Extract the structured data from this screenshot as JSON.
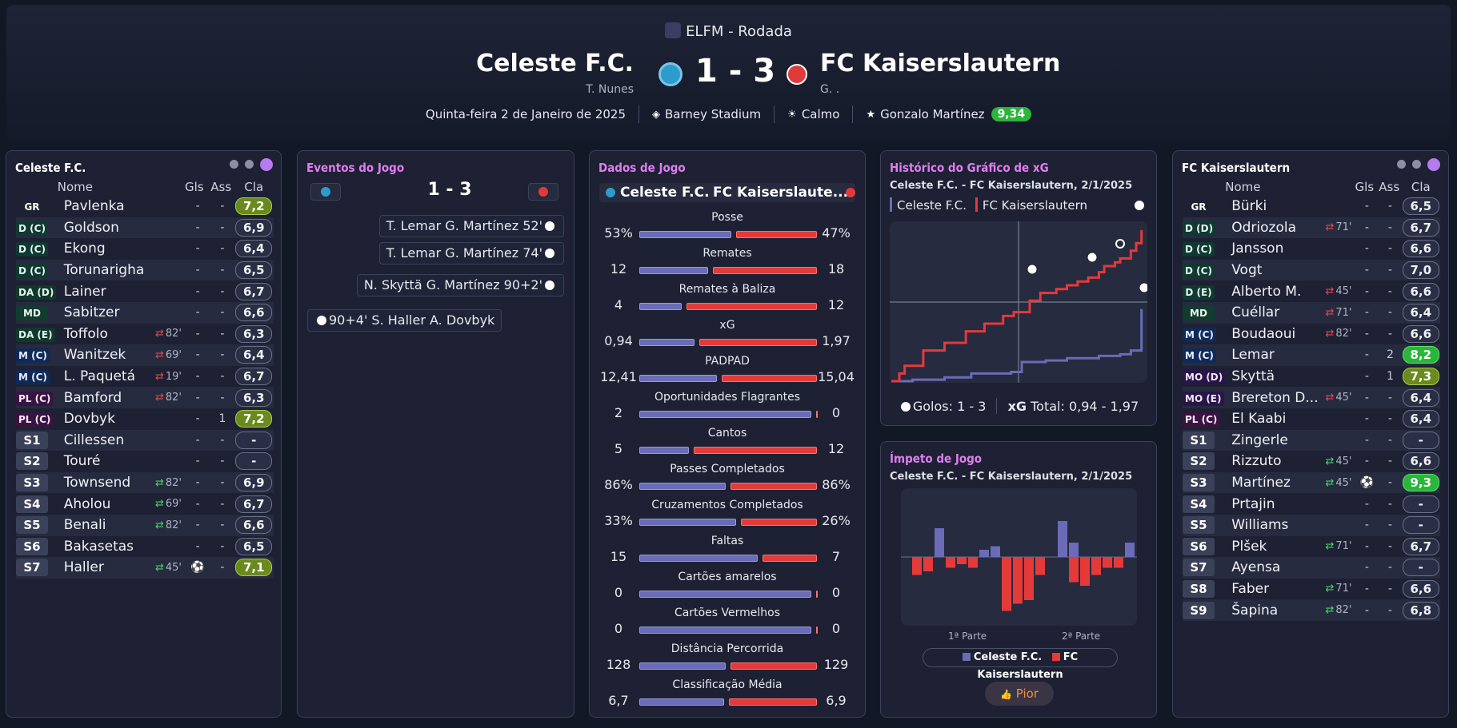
{
  "header": {
    "competition": "ELFM - Rodada",
    "home_team": "Celeste F.C.",
    "home_coach": "T. Nunes",
    "score": "1 - 3",
    "away_team": "FC Kaiserslautern",
    "away_coach": "G. .",
    "date": "Quinta-feira 2 de Janeiro de 2025",
    "stadium": "Barney Stadium",
    "weather": "Calmo",
    "motm": "Gonzalo Martínez",
    "motm_rating": "9,34"
  },
  "columns": {
    "name": "Nome",
    "goals": "Gls",
    "assists": "Ass",
    "rating": "Cla"
  },
  "home_panel_title": "Celeste F.C.",
  "away_panel_title": "FC Kaiserslautern",
  "home_players": [
    {
      "pos": "GR",
      "cls": "gr",
      "name": "Pavlenka",
      "sub": "",
      "goals": "-",
      "assists": "-",
      "rating": "7,2",
      "rc": "good"
    },
    {
      "pos": "D (C)",
      "cls": "d",
      "name": "Goldson",
      "sub": "",
      "goals": "-",
      "assists": "-",
      "rating": "6,9",
      "rc": ""
    },
    {
      "pos": "D (C)",
      "cls": "d",
      "name": "Ekong",
      "sub": "",
      "goals": "-",
      "assists": "-",
      "rating": "6,4",
      "rc": ""
    },
    {
      "pos": "D (C)",
      "cls": "d",
      "name": "Torunarigha",
      "sub": "",
      "goals": "-",
      "assists": "-",
      "rating": "6,5",
      "rc": ""
    },
    {
      "pos": "DA (D)",
      "cls": "da",
      "name": "Lainer",
      "sub": "",
      "goals": "-",
      "assists": "-",
      "rating": "6,7",
      "rc": ""
    },
    {
      "pos": "MD",
      "cls": "md",
      "name": "Sabitzer",
      "sub": "",
      "goals": "-",
      "assists": "-",
      "rating": "6,6",
      "rc": ""
    },
    {
      "pos": "DA (E)",
      "cls": "da",
      "name": "Toffolo",
      "sub": "82'",
      "arr": "r",
      "goals": "-",
      "assists": "-",
      "rating": "6,3",
      "rc": ""
    },
    {
      "pos": "M (C)",
      "cls": "m",
      "name": "Wanitzek",
      "sub": "69'",
      "arr": "r",
      "goals": "-",
      "assists": "-",
      "rating": "6,4",
      "rc": ""
    },
    {
      "pos": "M (C)",
      "cls": "m",
      "name": "L. Paquetá",
      "sub": "19'",
      "arr": "r",
      "goals": "-",
      "assists": "-",
      "rating": "6,7",
      "rc": ""
    },
    {
      "pos": "PL (C)",
      "cls": "pl",
      "name": "Bamford",
      "sub": "82'",
      "arr": "r",
      "goals": "-",
      "assists": "-",
      "rating": "6,3",
      "rc": ""
    },
    {
      "pos": "PL (C)",
      "cls": "pl",
      "name": "Dovbyk",
      "sub": "",
      "goals": "-",
      "assists": "1",
      "rating": "7,2",
      "rc": "good"
    },
    {
      "pos": "S1",
      "cls": "sub",
      "name": "Cillessen",
      "sub": "",
      "goals": "-",
      "assists": "-",
      "rating": "-",
      "rc": ""
    },
    {
      "pos": "S2",
      "cls": "sub",
      "name": "Touré",
      "sub": "",
      "goals": "-",
      "assists": "-",
      "rating": "-",
      "rc": ""
    },
    {
      "pos": "S3",
      "cls": "sub",
      "name": "Townsend",
      "sub": "82'",
      "arr": "g",
      "goals": "-",
      "assists": "-",
      "rating": "6,9",
      "rc": ""
    },
    {
      "pos": "S4",
      "cls": "sub",
      "name": "Aholou",
      "sub": "69'",
      "arr": "g",
      "goals": "-",
      "assists": "-",
      "rating": "6,7",
      "rc": ""
    },
    {
      "pos": "S5",
      "cls": "sub",
      "name": "Benali",
      "sub": "82'",
      "arr": "g",
      "goals": "-",
      "assists": "-",
      "rating": "6,6",
      "rc": ""
    },
    {
      "pos": "S6",
      "cls": "sub",
      "name": "Bakasetas",
      "sub": "",
      "goals": "-",
      "assists": "-",
      "rating": "6,5",
      "rc": ""
    },
    {
      "pos": "S7",
      "cls": "sub",
      "name": "Haller",
      "sub": "45'",
      "arr": "g",
      "goals": "⚽",
      "assists": "-",
      "rating": "7,1",
      "rc": "good"
    }
  ],
  "away_players": [
    {
      "pos": "GR",
      "cls": "gr",
      "name": "Bürki",
      "sub": "",
      "goals": "-",
      "assists": "-",
      "rating": "6,5",
      "rc": ""
    },
    {
      "pos": "D (D)",
      "cls": "d",
      "name": "Odriozola",
      "sub": "71'",
      "arr": "r",
      "goals": "-",
      "assists": "-",
      "rating": "6,7",
      "rc": ""
    },
    {
      "pos": "D (C)",
      "cls": "d",
      "name": "Jansson",
      "sub": "",
      "goals": "-",
      "assists": "-",
      "rating": "6,6",
      "rc": ""
    },
    {
      "pos": "D (C)",
      "cls": "d",
      "name": "Vogt",
      "sub": "",
      "goals": "-",
      "assists": "-",
      "rating": "7,0",
      "rc": ""
    },
    {
      "pos": "D (E)",
      "cls": "d",
      "name": "Alberto M.",
      "sub": "45'",
      "arr": "r",
      "goals": "-",
      "assists": "-",
      "rating": "6,6",
      "rc": ""
    },
    {
      "pos": "MD",
      "cls": "md",
      "name": "Cuéllar",
      "sub": "71'",
      "arr": "r",
      "goals": "-",
      "assists": "-",
      "rating": "6,4",
      "rc": ""
    },
    {
      "pos": "M (C)",
      "cls": "m",
      "name": "Boudaoui",
      "sub": "82'",
      "arr": "r",
      "goals": "-",
      "assists": "-",
      "rating": "6,6",
      "rc": ""
    },
    {
      "pos": "M (C)",
      "cls": "m",
      "name": "Lemar",
      "sub": "",
      "goals": "-",
      "assists": "2",
      "rating": "8,2",
      "rc": "great"
    },
    {
      "pos": "MO (D)",
      "cls": "mo",
      "name": "Skyttä",
      "sub": "",
      "goals": "-",
      "assists": "1",
      "rating": "7,3",
      "rc": "good"
    },
    {
      "pos": "MO (E)",
      "cls": "mo",
      "name": "Brereton D...",
      "sub": "45'",
      "arr": "r",
      "goals": "-",
      "assists": "-",
      "rating": "6,4",
      "rc": ""
    },
    {
      "pos": "PL (C)",
      "cls": "pl",
      "name": "El Kaabi",
      "sub": "",
      "goals": "-",
      "assists": "-",
      "rating": "6,4",
      "rc": ""
    },
    {
      "pos": "S1",
      "cls": "sub",
      "name": "Zingerle",
      "sub": "",
      "goals": "-",
      "assists": "-",
      "rating": "-",
      "rc": ""
    },
    {
      "pos": "S2",
      "cls": "sub",
      "name": "Rizzuto",
      "sub": "45'",
      "arr": "g",
      "goals": "-",
      "assists": "-",
      "rating": "6,6",
      "rc": ""
    },
    {
      "pos": "S3",
      "cls": "sub",
      "name": "Martínez",
      "sub": "45'",
      "arr": "g",
      "goals": "⚽",
      "assists": "-",
      "rating": "9,3",
      "rc": "great"
    },
    {
      "pos": "S4",
      "cls": "sub",
      "name": "Prtajin",
      "sub": "",
      "goals": "-",
      "assists": "-",
      "rating": "-",
      "rc": ""
    },
    {
      "pos": "S5",
      "cls": "sub",
      "name": "Williams",
      "sub": "",
      "goals": "-",
      "assists": "-",
      "rating": "-",
      "rc": ""
    },
    {
      "pos": "S6",
      "cls": "sub",
      "name": "Plšek",
      "sub": "71'",
      "arr": "g",
      "goals": "-",
      "assists": "-",
      "rating": "6,7",
      "rc": ""
    },
    {
      "pos": "S7",
      "cls": "sub",
      "name": "Ayensa",
      "sub": "",
      "goals": "-",
      "assists": "-",
      "rating": "-",
      "rc": ""
    },
    {
      "pos": "S8",
      "cls": "sub",
      "name": "Faber",
      "sub": "71'",
      "arr": "g",
      "goals": "-",
      "assists": "-",
      "rating": "6,6",
      "rc": ""
    },
    {
      "pos": "S9",
      "cls": "sub",
      "name": "Šapina",
      "sub": "82'",
      "arr": "g",
      "goals": "-",
      "assists": "-",
      "rating": "6,8",
      "rc": ""
    }
  ],
  "events": {
    "title": "Eventos do Jogo",
    "score": "1 - 3",
    "items": [
      {
        "side": "away",
        "text": "T. Lemar  G. Martínez 52'"
      },
      {
        "side": "away",
        "text": "T. Lemar  G. Martínez 74'"
      },
      {
        "side": "away",
        "text": "N. Skyttä  G. Martínez 90+2'"
      },
      {
        "side": "home",
        "text": "90+4'  S. Haller  A. Dovbyk"
      }
    ]
  },
  "stats": {
    "title": "Dados de Jogo",
    "home": "Celeste F.C.",
    "away": "FC Kaiserslaute...",
    "rows": [
      {
        "label": "Posse",
        "h": "53%",
        "a": "47%",
        "hv": 53,
        "av": 47
      },
      {
        "label": "Remates",
        "h": "12",
        "a": "18",
        "hv": 12,
        "av": 18
      },
      {
        "label": "Remates à Baliza",
        "h": "4",
        "a": "12",
        "hv": 4,
        "av": 12
      },
      {
        "label": "xG",
        "h": "0,94",
        "a": "1,97",
        "hv": 0.94,
        "av": 1.97
      },
      {
        "label": "PADPAD",
        "h": "12,41",
        "a": "15,04",
        "hv": 12.41,
        "av": 15.04
      },
      {
        "label": "Oportunidades Flagrantes",
        "h": "2",
        "a": "0",
        "hv": 2,
        "av": 0
      },
      {
        "label": "Cantos",
        "h": "5",
        "a": "12",
        "hv": 5,
        "av": 12
      },
      {
        "label": "Passes Completados",
        "h": "86%",
        "a": "86%",
        "hv": 86,
        "av": 86
      },
      {
        "label": "Cruzamentos Completados",
        "h": "33%",
        "a": "26%",
        "hv": 33,
        "av": 26
      },
      {
        "label": "Faltas",
        "h": "15",
        "a": "7",
        "hv": 15,
        "av": 7
      },
      {
        "label": "Cartões amarelos",
        "h": "0",
        "a": "0",
        "hv": 0,
        "av": 0
      },
      {
        "label": "Cartões Vermelhos",
        "h": "0",
        "a": "0",
        "hv": 0,
        "av": 0
      },
      {
        "label": "Distância Percorrida",
        "h": "128",
        "a": "129",
        "hv": 128,
        "av": 129
      },
      {
        "label": "Classificação Média",
        "h": "6,7",
        "a": "6,9",
        "hv": 6.7,
        "av": 6.9
      }
    ]
  },
  "xg": {
    "title": "Histórico do Gráfico de xG",
    "subtitle": "Celeste F.C. - FC Kaiserslautern, 2/1/2025",
    "legend_home": "Celeste F.C.",
    "legend_away": "FC Kaiserslautern",
    "goals_label": "Golos: 1 - 3",
    "xg_label": "xG",
    "xg_total": "Total: 0,94 - 1,97"
  },
  "momentum": {
    "title": "Ímpeto de Jogo",
    "subtitle": "Celeste F.C. - FC Kaiserslautern, 2/1/2025",
    "first_half": "1ª Parte",
    "second_half": "2ª Parte",
    "legend_home": "Celeste F.C.",
    "legend_away": "FC Kaiserslautern",
    "button": "Pior"
  },
  "colors": {
    "home": "#6b6bb8",
    "away": "#e53a3a",
    "accent": "#e07ef0"
  },
  "chart_data": [
    {
      "type": "line",
      "title": "Histórico do Gráfico de xG",
      "x_label": "minute",
      "ylim": [
        0,
        2.0
      ],
      "xlim": [
        0,
        95
      ],
      "series": [
        {
          "name": "Celeste F.C.",
          "x": [
            0,
            8,
            20,
            30,
            45,
            49,
            58,
            66,
            78,
            86,
            90,
            94
          ],
          "y": [
            0,
            0.02,
            0.05,
            0.1,
            0.12,
            0.25,
            0.27,
            0.3,
            0.33,
            0.35,
            0.4,
            0.94
          ]
        },
        {
          "name": "FC Kaiserslautern",
          "x": [
            0,
            3,
            5,
            12,
            20,
            28,
            35,
            42,
            46,
            52,
            56,
            62,
            66,
            70,
            74,
            78,
            80,
            84,
            86,
            90,
            92,
            94
          ],
          "y": [
            0,
            0.1,
            0.2,
            0.4,
            0.5,
            0.65,
            0.75,
            0.85,
            0.9,
            1.05,
            1.15,
            1.2,
            1.25,
            1.3,
            1.35,
            1.42,
            1.5,
            1.55,
            1.6,
            1.7,
            1.8,
            1.97
          ]
        }
      ]
    },
    {
      "type": "bar",
      "title": "Ímpeto de Jogo",
      "series": [
        {
          "name": "Celeste F.C.",
          "values": [
            0,
            0,
            0.8,
            0,
            0,
            0,
            0.2,
            0.3,
            0,
            0,
            0,
            0,
            0,
            1,
            0.4,
            0,
            0,
            0,
            0,
            0.4
          ]
        },
        {
          "name": "FC Kaiserslautern",
          "values": [
            0.5,
            0.4,
            0,
            0.3,
            0.2,
            0.3,
            0,
            0,
            1.5,
            1.3,
            1.2,
            0.5,
            0,
            0,
            0.7,
            0.8,
            0.5,
            0.3,
            0.3,
            0
          ]
        }
      ]
    }
  ]
}
